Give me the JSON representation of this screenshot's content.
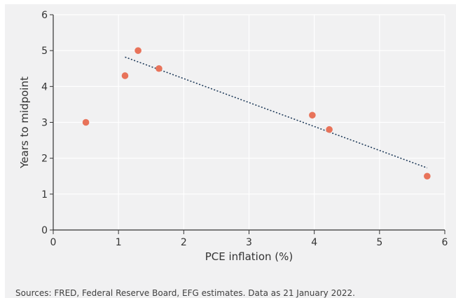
{
  "chart_data": {
    "type": "scatter",
    "xlabel": "PCE inflation (%)",
    "ylabel": "Years to midpoint",
    "xlim": [
      0,
      6
    ],
    "ylim": [
      0,
      6
    ],
    "xticks": [
      "0",
      "1",
      "2",
      "3",
      "4",
      "5",
      "6"
    ],
    "yticks": [
      "0",
      "1",
      "2",
      "3",
      "4",
      "5",
      "6"
    ],
    "grid": true,
    "point_color": "#e8735a",
    "trend_color": "#1f3b5a",
    "points": [
      {
        "x": 0.5,
        "y": 3.0
      },
      {
        "x": 1.1,
        "y": 4.3
      },
      {
        "x": 1.3,
        "y": 5.0
      },
      {
        "x": 1.62,
        "y": 4.5
      },
      {
        "x": 3.97,
        "y": 3.2
      },
      {
        "x": 4.23,
        "y": 2.8
      },
      {
        "x": 5.73,
        "y": 1.5
      }
    ],
    "trendline": {
      "x": [
        1.1,
        5.73
      ],
      "y": [
        4.82,
        1.73
      ]
    }
  },
  "source": "Sources: FRED, Federal Reserve Board, EFG estimates. Data as 21 January 2022."
}
